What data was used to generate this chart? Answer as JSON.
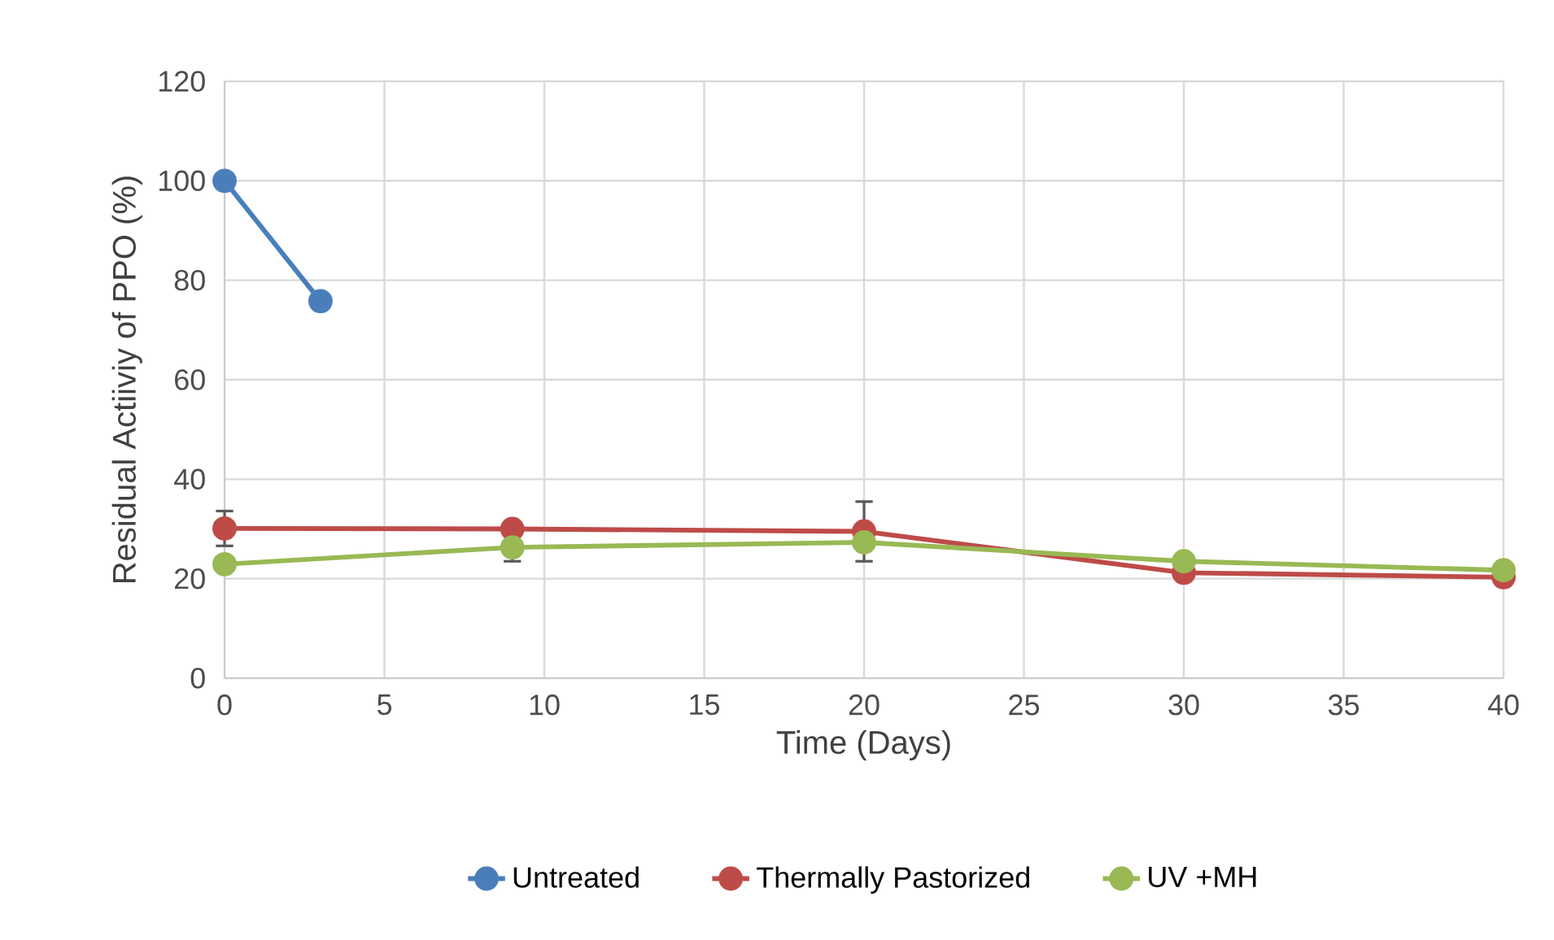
{
  "chart_data": {
    "type": "line",
    "xlabel": "Time (Days)",
    "ylabel": "Residual Actiiviy of PPO (%)",
    "xlim": [
      0,
      40
    ],
    "xticks": [
      0,
      5,
      10,
      15,
      20,
      25,
      30,
      35,
      40
    ],
    "ylim": [
      0,
      120
    ],
    "yticks": [
      0,
      20,
      40,
      60,
      80,
      100,
      120
    ],
    "grid": true,
    "legend": "bottom",
    "marker": "circle",
    "line_style": "solid",
    "series": [
      {
        "name": "Untreated",
        "color": "#4a7ebb",
        "x": [
          0,
          3
        ],
        "values": [
          100,
          75.8
        ]
      },
      {
        "name": "Thermally Pastorized",
        "color": "#be4b48",
        "x": [
          0,
          9,
          20,
          30,
          40
        ],
        "values": [
          30.1,
          30,
          29.5,
          21.2,
          20.3
        ],
        "errors": [
          3.5,
          null,
          6,
          null,
          null
        ]
      },
      {
        "name": "UV +MH",
        "color": "#98b954",
        "x": [
          0,
          9,
          20,
          30,
          40
        ],
        "values": [
          22.9,
          26.3,
          27.3,
          23.5,
          21.7
        ],
        "errors": [
          null,
          2.8,
          null,
          null,
          null
        ]
      }
    ]
  }
}
